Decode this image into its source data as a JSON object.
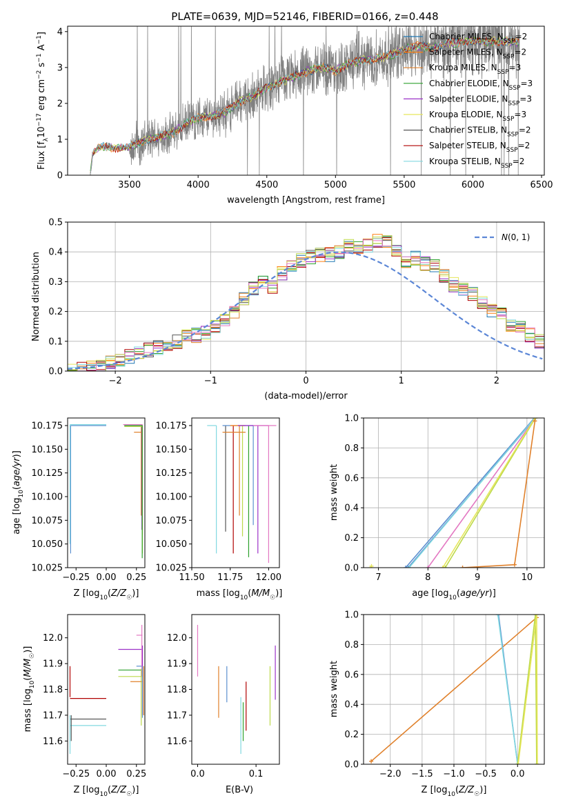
{
  "title": "PLATE=0639, MJD=52146, FIBERID=0166, z=0.448",
  "colors": {
    "chabrier_miles": "#1f77b4",
    "salpeter_miles": "#ff7f0e",
    "kroupa_miles": "#e0802a",
    "chabrier_elodie": "#2ca02c",
    "salpeter_elodie": "#9b30c8",
    "kroupa_elodie": "#e6e65a",
    "chabrier_stelib": "#555555",
    "salpeter_stelib": "#b00000",
    "kroupa_stelib": "#80d8e0",
    "pink": "#e377c2",
    "lime": "#bcd94a",
    "blue": "#5b8fcf",
    "gaussian": "#5b86d6",
    "data": "#808080",
    "grid": "#b0b0b0"
  },
  "chart_data": [
    {
      "id": "spectrum",
      "type": "line",
      "title": "PLATE=0639, MJD=52146, FIBERID=0166, z=0.448",
      "xlabel": "wavelength [Angstrom, rest frame]",
      "ylabel": "Flux [f_λ 10^-17 erg cm^-2 s^-1 A^-1]",
      "xlim": [
        3050,
        6520
      ],
      "ylim": [
        0,
        4.15
      ],
      "xticks": [
        3500,
        4000,
        4500,
        5000,
        5500,
        6000,
        6500
      ],
      "yticks": [
        0,
        1,
        2,
        3,
        4
      ],
      "grid": false,
      "legend_position": "top-right",
      "legend": [
        {
          "label": "Chabrier MILES, N",
          "sub": "SSP",
          "suffix": "=2",
          "color": "#1f77b4"
        },
        {
          "label": "Salpeter MILES, N",
          "sub": "SSP",
          "suffix": "=2",
          "color": "#ff7f0e"
        },
        {
          "label": "Kroupa MILES, N",
          "sub": "SSP",
          "suffix": "=3",
          "color": "#e0802a"
        },
        {
          "label": "Chabrier ELODIE, N",
          "sub": "SSP",
          "suffix": "=3",
          "color": "#2ca02c"
        },
        {
          "label": "Salpeter ELODIE, N",
          "sub": "SSP",
          "suffix": "=3",
          "color": "#9b30c8"
        },
        {
          "label": "Kroupa ELODIE, N",
          "sub": "SSP",
          "suffix": "=3",
          "color": "#e6e65a"
        },
        {
          "label": "Chabrier STELIB, N",
          "sub": "SSP",
          "suffix": "=2",
          "color": "#555555"
        },
        {
          "label": "Salpeter STELIB, N",
          "sub": "SSP",
          "suffix": "=2",
          "color": "#b00000"
        },
        {
          "label": "Kroupa STELIB, N",
          "sub": "SSP",
          "suffix": "=2",
          "color": "#80d8e0"
        }
      ],
      "continuum": {
        "wavelength": [
          3215,
          3230,
          3260,
          3300,
          3400,
          3500,
          3600,
          3700,
          3800,
          3900,
          4000,
          4100,
          4200,
          4300,
          4400,
          4500,
          4600,
          4700,
          4800,
          4900,
          5000,
          5100,
          5200,
          5300,
          5400,
          5500,
          5600,
          5700,
          5800,
          5900,
          6000,
          6100,
          6200,
          6300,
          6340
        ],
        "flux": [
          0.0,
          0.55,
          0.72,
          0.8,
          0.76,
          0.78,
          0.95,
          1.05,
          1.15,
          1.4,
          1.6,
          1.65,
          1.75,
          2.05,
          2.2,
          2.45,
          2.6,
          2.75,
          2.9,
          3.0,
          2.9,
          3.1,
          3.2,
          3.25,
          3.35,
          3.5,
          3.6,
          3.55,
          3.65,
          3.7,
          3.75,
          3.7,
          3.75,
          3.7,
          3.7
        ]
      }
    },
    {
      "id": "residuals",
      "type": "line",
      "xlabel": "(data-model)/error",
      "ylabel": "Normed distribution",
      "xlim": [
        -2.5,
        2.5
      ],
      "ylim": [
        0,
        0.5
      ],
      "xticks": [
        -2,
        -1,
        0,
        1,
        2
      ],
      "yticks": [
        0.0,
        0.1,
        0.2,
        0.3,
        0.4,
        0.5
      ],
      "grid": true,
      "legend_position": "top-right",
      "gaussian_label": "N(0,1)",
      "gaussian_center": 0.35,
      "hist_bin_width": 0.1,
      "hist_base": [
        0.0,
        0.01,
        0.01,
        0.02,
        0.03,
        0.04,
        0.05,
        0.06,
        0.07,
        0.08,
        0.09,
        0.1,
        0.12,
        0.12,
        0.13,
        0.15,
        0.17,
        0.2,
        0.24,
        0.28,
        0.3,
        0.28,
        0.33,
        0.35,
        0.37,
        0.38,
        0.39,
        0.39,
        0.4,
        0.42,
        0.41,
        0.42,
        0.44,
        0.43,
        0.4,
        0.37,
        0.38,
        0.36,
        0.35,
        0.32,
        0.29,
        0.27,
        0.26,
        0.23,
        0.2,
        0.19,
        0.15,
        0.15,
        0.12,
        0.1,
        0.09
      ]
    },
    {
      "id": "age_vs_Z",
      "type": "scatter",
      "xlabel": "Z [log10(Z/Z☉)]",
      "ylabel": "age  [log10(age/yr)]",
      "xlim": [
        -0.32,
        0.32
      ],
      "ylim": [
        10.025,
        10.183
      ],
      "xticks": [
        -0.25,
        0.0,
        0.25
      ],
      "xticklabels": [
        "-0.25",
        "0.00",
        "0.25"
      ],
      "yticks": [
        10.025,
        10.05,
        10.075,
        10.1,
        10.125,
        10.15,
        10.175
      ],
      "yticklabels": [
        "10.025",
        "10.050",
        "10.075",
        "10.100",
        "10.125",
        "10.150",
        "10.175"
      ]
    },
    {
      "id": "age_vs_mass",
      "type": "scatter",
      "xlabel": "mass [log10(M/M☉)]",
      "xlim": [
        11.5,
        12.07
      ],
      "ylim": [
        10.025,
        10.183
      ],
      "xticks": [
        11.5,
        11.75,
        12.0
      ],
      "xticklabels": [
        "11.50",
        "11.75",
        "12.00"
      ],
      "yticks": [
        10.025,
        10.05,
        10.075,
        10.1,
        10.125,
        10.15,
        10.175
      ],
      "yticklabels": [
        "10.025",
        "10.050",
        "10.075",
        "10.100",
        "10.125",
        "10.150",
        "10.175"
      ]
    },
    {
      "id": "mass_weight_vs_age",
      "type": "line",
      "xlabel": "age  [log10(age/yr)]",
      "ylabel": "mass weight",
      "xlim": [
        6.7,
        10.35
      ],
      "ylim": [
        0,
        1
      ],
      "xticks": [
        7,
        8,
        9,
        10
      ],
      "yticks": [
        0.0,
        0.2,
        0.4,
        0.6,
        0.8,
        1.0
      ],
      "grid": true,
      "series": [
        {
          "color": "#5b8fcf",
          "x": [
            7.6,
            10.17
          ],
          "y": [
            0.0,
            1.0
          ]
        },
        {
          "color": "#5b8fcf",
          "x": [
            7.55,
            10.15
          ],
          "y": [
            0.0,
            1.0
          ]
        },
        {
          "color": "#80d8e0",
          "x": [
            7.62,
            10.16
          ],
          "y": [
            0.0,
            1.0
          ]
        },
        {
          "color": "#e377c2",
          "x": [
            8.0,
            10.17
          ],
          "y": [
            0.0,
            1.0
          ]
        },
        {
          "color": "#bcd94a",
          "x": [
            8.35,
            10.17
          ],
          "y": [
            0.0,
            1.0
          ]
        },
        {
          "color": "#e6e65a",
          "x": [
            8.3,
            10.16
          ],
          "y": [
            0.0,
            1.0
          ]
        },
        {
          "color": "#e0802a",
          "x": [
            8.7,
            9.75,
            10.16
          ],
          "y": [
            0.0,
            0.02,
            0.98
          ]
        },
        {
          "color": "#e6e65a",
          "x": [
            6.85,
            6.86
          ],
          "y": [
            0.0,
            0.01
          ]
        }
      ]
    },
    {
      "id": "mass_vs_Z",
      "type": "scatter",
      "xlabel": "Z [log10(Z/Z☉)]",
      "ylabel": "mass [log10(M/M☉)]",
      "xlim": [
        -0.32,
        0.32
      ],
      "ylim": [
        11.51,
        12.09
      ],
      "xticks": [
        -0.25,
        0.0,
        0.25
      ],
      "xticklabels": [
        "-0.25",
        "0.00",
        "0.25"
      ],
      "yticks": [
        11.6,
        11.7,
        11.8,
        11.9,
        12.0
      ],
      "yticklabels": [
        "11.6",
        "11.7",
        "11.8",
        "11.9",
        "12.0"
      ]
    },
    {
      "id": "mass_vs_ebv",
      "type": "scatter",
      "xlabel": "E(B-V)",
      "xlim": [
        -0.01,
        0.14
      ],
      "ylim": [
        11.51,
        12.09
      ],
      "xticks": [
        0.0,
        0.1
      ],
      "xticklabels": [
        "0.0",
        "0.1"
      ],
      "yticks": [
        11.6,
        11.7,
        11.8,
        11.9,
        12.0
      ],
      "yticklabels": [
        "11.6",
        "11.7",
        "11.8",
        "11.9",
        "12.0"
      ],
      "points": [
        {
          "x": 0.0,
          "y0": 11.85,
          "y1": 12.05,
          "color": "#e377c2"
        },
        {
          "x": 0.036,
          "y0": 11.69,
          "y1": 11.89,
          "color": "#e0802a"
        },
        {
          "x": 0.05,
          "y0": 11.75,
          "y1": 11.89,
          "color": "#5b8fcf"
        },
        {
          "x": 0.074,
          "y0": 11.55,
          "y1": 11.77,
          "color": "#80d8e0"
        },
        {
          "x": 0.078,
          "y0": 11.6,
          "y1": 11.75,
          "color": "#2ca02c"
        },
        {
          "x": 0.083,
          "y0": 11.64,
          "y1": 11.83,
          "color": "#b00000"
        },
        {
          "x": 0.124,
          "y0": 11.66,
          "y1": 11.89,
          "color": "#bcd94a"
        },
        {
          "x": 0.133,
          "y0": 11.76,
          "y1": 11.97,
          "color": "#9b30c8"
        }
      ]
    },
    {
      "id": "mass_weight_vs_Z",
      "type": "line",
      "xlabel": "Z [log10(Z/Z☉)]",
      "ylabel": "mass weight",
      "xlim": [
        -2.42,
        0.42
      ],
      "ylim": [
        0,
        1
      ],
      "xticks": [
        -2.0,
        -1.5,
        -1.0,
        -0.5,
        0.0
      ],
      "xticklabels": [
        "-2.0",
        "-1.5",
        "-1.0",
        "-0.5",
        "0.0"
      ],
      "yticks": [
        0.0,
        0.2,
        0.4,
        0.6,
        0.8,
        1.0
      ],
      "grid": true,
      "series": [
        {
          "color": "#e0802a",
          "x": [
            -2.3,
            0.3
          ],
          "y": [
            0.02,
            0.98
          ]
        },
        {
          "color": "#5b8fcf",
          "x": [
            -0.3,
            0.0
          ],
          "y": [
            1.0,
            0.0
          ]
        },
        {
          "color": "#80d8e0",
          "x": [
            -0.31,
            0.0
          ],
          "y": [
            1.0,
            0.0
          ]
        },
        {
          "color": "#bcd94a",
          "x": [
            0.0,
            0.28,
            0.3
          ],
          "y": [
            0.0,
            1.0,
            0.0
          ]
        },
        {
          "color": "#e6e65a",
          "x": [
            0.01,
            0.3,
            0.31
          ],
          "y": [
            0.0,
            1.0,
            0.0
          ]
        }
      ]
    }
  ]
}
